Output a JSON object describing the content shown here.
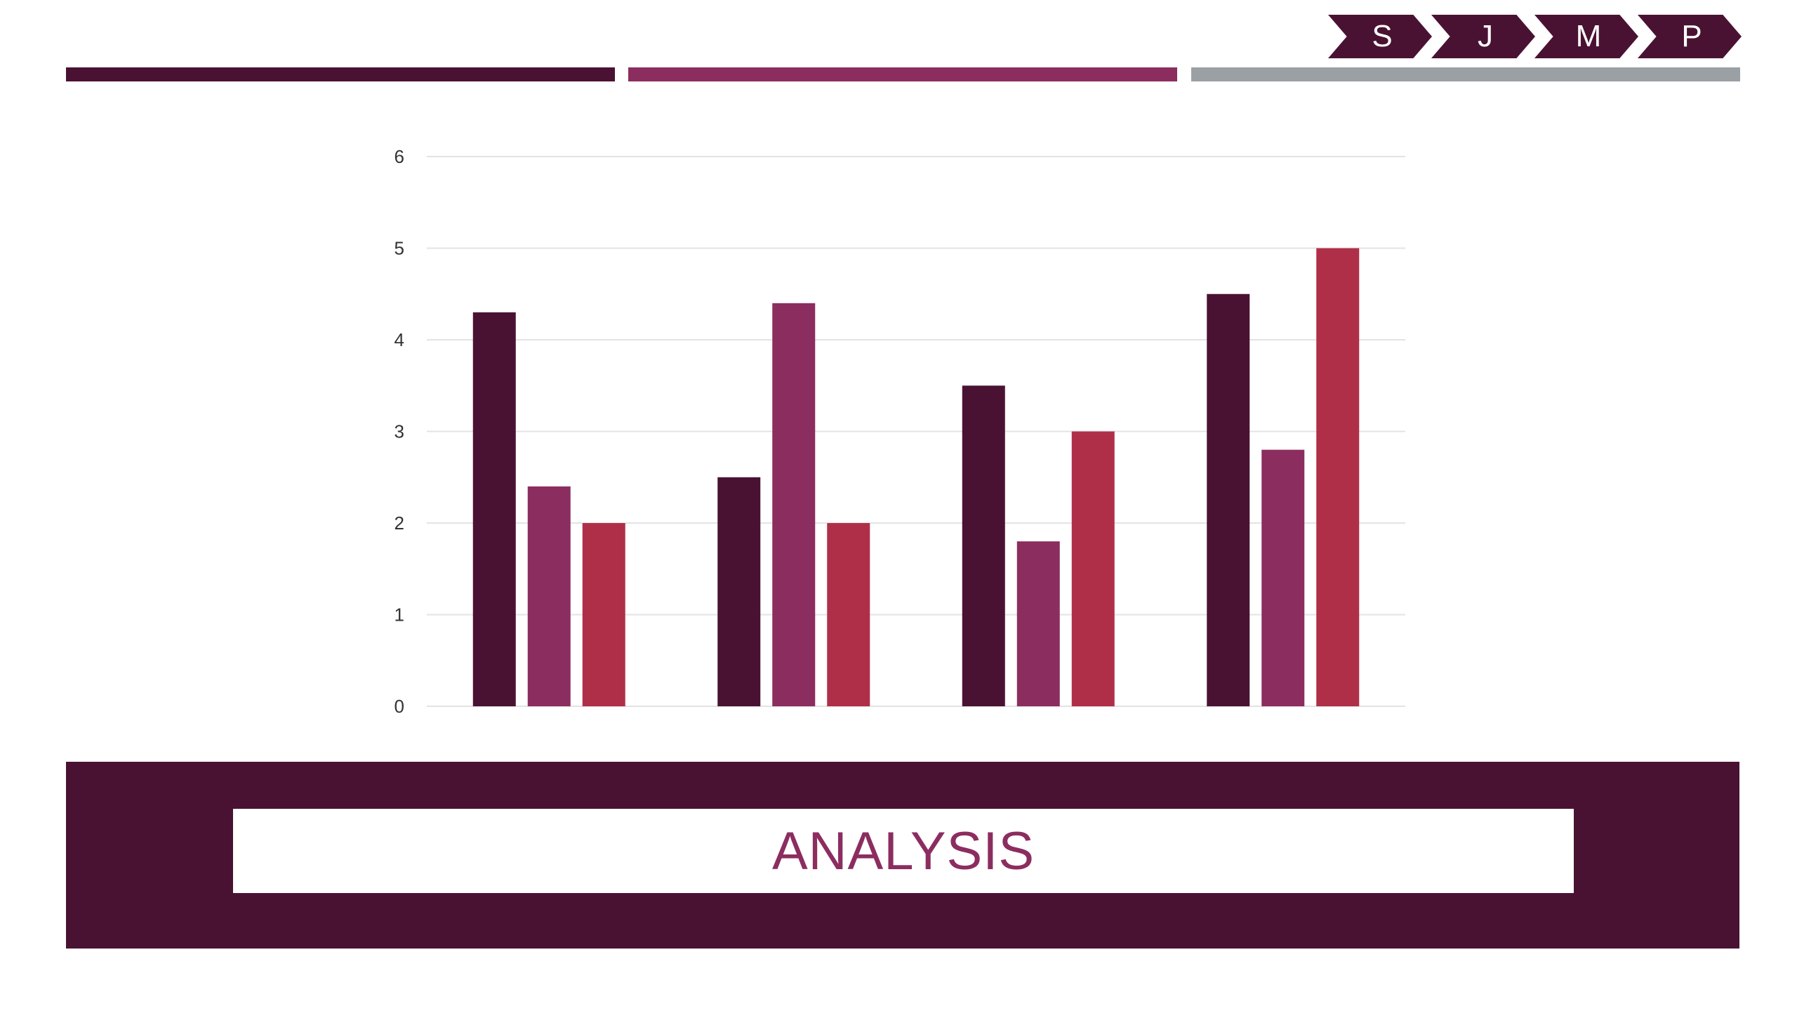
{
  "colors": {
    "dark": "#4A1232",
    "plum": "#8C2D5F",
    "red": "#B02F48",
    "gray": "#9AA0A4",
    "grid": "#E3E3E3"
  },
  "nav": {
    "steps": [
      {
        "label": "S"
      },
      {
        "label": "J"
      },
      {
        "label": "M"
      },
      {
        "label": "P"
      }
    ]
  },
  "banner": {
    "title": "ANALYSIS"
  },
  "chart_data": {
    "type": "bar",
    "categories": [
      "",
      "",
      "",
      ""
    ],
    "series": [
      {
        "values": [
          4.3,
          2.5,
          3.5,
          4.5
        ]
      },
      {
        "values": [
          2.4,
          4.4,
          1.8,
          2.8
        ]
      },
      {
        "values": [
          2.0,
          2.0,
          3.0,
          5.0
        ]
      }
    ],
    "yticks": [
      "0",
      "1",
      "2",
      "3",
      "4",
      "5",
      "6"
    ],
    "ylim": [
      0,
      6
    ],
    "grid": true,
    "legend": "none"
  }
}
